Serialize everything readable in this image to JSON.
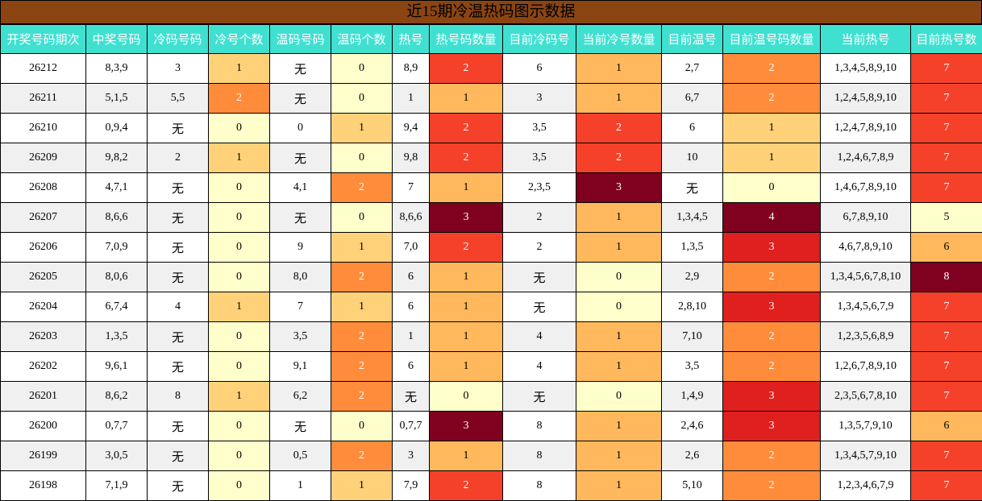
{
  "title": "近15期冷温热码图示数据",
  "headers": [
    "开奖号码期次",
    "中奖号码",
    "冷码号码",
    "冷号个数",
    "温码号码",
    "温码个数",
    "热号",
    "热号码数量",
    "目前冷码号",
    "当前冷号数量",
    "目前温号",
    "目前温号码数量",
    "当前热号",
    "目前热号数"
  ],
  "rows": [
    [
      "26212",
      "8,3,9",
      "3",
      "1",
      "无",
      "0",
      "8,9",
      "2",
      "6",
      "1",
      "2,7",
      "2",
      "1,3,4,5,8,9,10",
      "7"
    ],
    [
      "26211",
      "5,1,5",
      "5,5",
      "2",
      "无",
      "0",
      "1",
      "1",
      "3",
      "1",
      "6,7",
      "2",
      "1,2,4,5,8,9,10",
      "7"
    ],
    [
      "26210",
      "0,9,4",
      "无",
      "0",
      "0",
      "1",
      "9,4",
      "2",
      "3,5",
      "2",
      "6",
      "1",
      "1,2,4,7,8,9,10",
      "7"
    ],
    [
      "26209",
      "9,8,2",
      "2",
      "1",
      "无",
      "0",
      "9,8",
      "2",
      "3,5",
      "2",
      "10",
      "1",
      "1,2,4,6,7,8,9",
      "7"
    ],
    [
      "26208",
      "4,7,1",
      "无",
      "0",
      "4,1",
      "2",
      "7",
      "1",
      "2,3,5",
      "3",
      "无",
      "0",
      "1,4,6,7,8,9,10",
      "7"
    ],
    [
      "26207",
      "8,6,6",
      "无",
      "0",
      "无",
      "0",
      "8,6,6",
      "3",
      "2",
      "1",
      "1,3,4,5",
      "4",
      "6,7,8,9,10",
      "5"
    ],
    [
      "26206",
      "7,0,9",
      "无",
      "0",
      "9",
      "1",
      "7,0",
      "2",
      "2",
      "1",
      "1,3,5",
      "3",
      "4,6,7,8,9,10",
      "6"
    ],
    [
      "26205",
      "8,0,6",
      "无",
      "0",
      "8,0",
      "2",
      "6",
      "1",
      "无",
      "0",
      "2,9",
      "2",
      "1,3,4,5,6,7,8,10",
      "8"
    ],
    [
      "26204",
      "6,7,4",
      "4",
      "1",
      "7",
      "1",
      "6",
      "1",
      "无",
      "0",
      "2,8,10",
      "3",
      "1,3,4,5,6,7,9",
      "7"
    ],
    [
      "26203",
      "1,3,5",
      "无",
      "0",
      "3,5",
      "2",
      "1",
      "1",
      "4",
      "1",
      "7,10",
      "2",
      "1,2,3,5,6,8,9",
      "7"
    ],
    [
      "26202",
      "9,6,1",
      "无",
      "0",
      "9,1",
      "2",
      "6",
      "1",
      "4",
      "1",
      "3,5",
      "2",
      "1,2,6,7,8,9,10",
      "7"
    ],
    [
      "26201",
      "8,6,2",
      "8",
      "1",
      "6,2",
      "2",
      "无",
      "0",
      "无",
      "0",
      "1,4,9",
      "3",
      "2,3,5,6,7,8,10",
      "7"
    ],
    [
      "26200",
      "0,7,7",
      "无",
      "0",
      "无",
      "0",
      "0,7,7",
      "3",
      "8",
      "1",
      "2,4,6",
      "3",
      "1,3,5,7,9,10",
      "6"
    ],
    [
      "26199",
      "3,0,5",
      "无",
      "0",
      "0,5",
      "2",
      "3",
      "1",
      "8",
      "1",
      "2,6",
      "2",
      "1,3,4,5,7,9,10",
      "7"
    ],
    [
      "26198",
      "7,1,9",
      "无",
      "0",
      "1",
      "1",
      "7,9",
      "2",
      "8",
      "1",
      "5,10",
      "2",
      "1,2,3,4,6,7,9",
      "7"
    ]
  ]
}
